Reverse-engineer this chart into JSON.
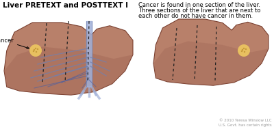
{
  "title": "Liver PRETEXT and POSTTEXT I",
  "title_fontsize": 7.5,
  "title_fontweight": "bold",
  "bg_color": "#ffffff",
  "description_line1": "Cancer is found in one section of the liver.",
  "description_line2": "Three sections of the liver that are next to",
  "description_line3": "each other do not have cancer in them.",
  "desc_fontsize": 6.0,
  "cancer_label": "Cancer",
  "cancer_label_fontsize": 6.0,
  "copyright_text": "© 2010 Teresa Winslow LLC\nU.S. Govt. has certain rights",
  "copyright_fontsize": 4.0,
  "liver_color": "#b8806a",
  "liver_color2": "#a06858",
  "liver_edge_color": "#7a4030",
  "liver_shadow": "#9a6050",
  "tumor_color": "#e8c060",
  "tumor_edge_color": "#b08020",
  "dashed_color": "#222222",
  "vessel_color_light": "#a0b0d8",
  "vessel_color_mid": "#7080b0",
  "vessel_color_dark": "#5060a0",
  "arrow_color": "#000000"
}
